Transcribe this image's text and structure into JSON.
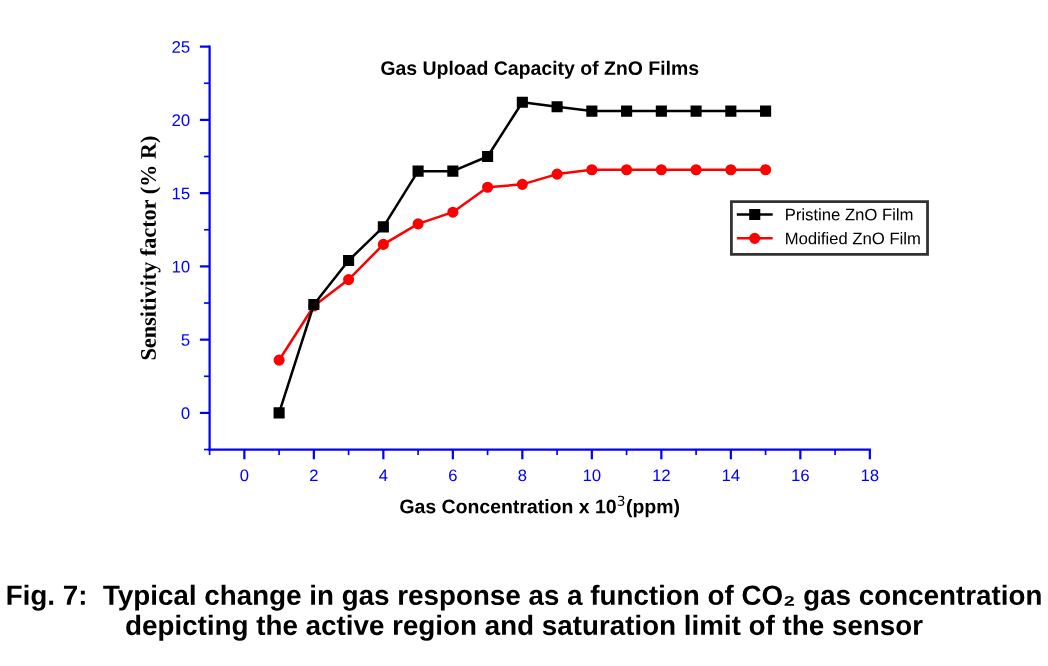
{
  "chart_data": {
    "type": "line",
    "title": "Gas Upload Capacity of ZnO Films",
    "xlabel": "Gas Concentration x 10$^{3}$(ppm)",
    "ylabel": "Sensitivity factor (% R)",
    "x": [
      1,
      2,
      3,
      4,
      5,
      6,
      7,
      8,
      9,
      10,
      11,
      12,
      13,
      14,
      15
    ],
    "series": [
      {
        "name": "Pristine ZnO Film",
        "color": "#000000",
        "marker": "square",
        "values": [
          0,
          7.4,
          10.4,
          12.7,
          16.5,
          16.5,
          17.5,
          21.2,
          20.9,
          20.6,
          20.6,
          20.6,
          20.6,
          20.6,
          20.6
        ]
      },
      {
        "name": "Modified ZnO Film",
        "color": "#ff0000",
        "marker": "circle",
        "values": [
          3.6,
          7.3,
          9.1,
          11.5,
          12.9,
          13.7,
          15.4,
          15.6,
          16.3,
          16.6,
          16.6,
          16.6,
          16.6,
          16.6,
          16.6
        ]
      }
    ],
    "xlim": [
      -1,
      18
    ],
    "xticks": [
      0,
      2,
      4,
      6,
      8,
      10,
      12,
      14,
      16,
      18
    ],
    "ylim": [
      -2.5,
      25
    ],
    "yticks": [
      0,
      5,
      10,
      15,
      20,
      25
    ],
    "grid": false,
    "legend": "right",
    "line_style": "solid",
    "annotations": [
      "Fig. 7:  Typical change in gas response as a function of CO₂ gas concentration depicting the active region and saturation limit of the sensor"
    ]
  }
}
